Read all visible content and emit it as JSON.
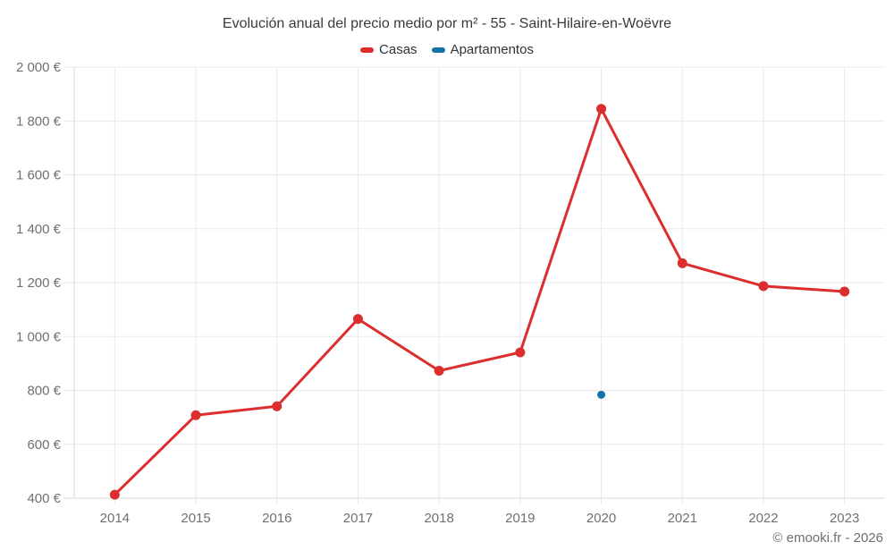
{
  "title": "Evolución anual del precio medio por m² - 55 - Saint-Hilaire-en-Woëvre",
  "legend": {
    "items": [
      {
        "label": "Casas",
        "color": "#dc2e2e"
      },
      {
        "label": "Apartamentos",
        "color": "#1173a6"
      }
    ]
  },
  "footer": {
    "credit": "© emooki.fr - 2026"
  },
  "colors": {
    "grid": "#e9e9e9",
    "axis": "#d8d8d8",
    "tick_label": "#707070",
    "title_text": "#3a3a3a"
  },
  "chart_data": {
    "type": "line",
    "title": "Evolución anual del precio medio por m² - 55 - Saint-Hilaire-en-Woëvre",
    "categories": [
      "2014",
      "2015",
      "2016",
      "2017",
      "2018",
      "2019",
      "2020",
      "2021",
      "2022",
      "2023"
    ],
    "series": [
      {
        "name": "Casas",
        "color": "#dc2e2e",
        "marker_radius": 5.5,
        "line_width": 3,
        "values": [
          413,
          708,
          741,
          1065,
          873,
          941,
          1845,
          1272,
          1187,
          1167
        ]
      },
      {
        "name": "Apartamentos",
        "color": "#1173a6",
        "marker_radius": 4.5,
        "line_width": 3,
        "values": [
          null,
          null,
          null,
          null,
          null,
          null,
          784,
          null,
          null,
          null
        ]
      }
    ],
    "xlabel": "",
    "ylabel": "",
    "ylim": [
      400,
      2000
    ],
    "ytick_step": 200,
    "y_suffix": " €",
    "grid": true,
    "legend_position": "top"
  }
}
